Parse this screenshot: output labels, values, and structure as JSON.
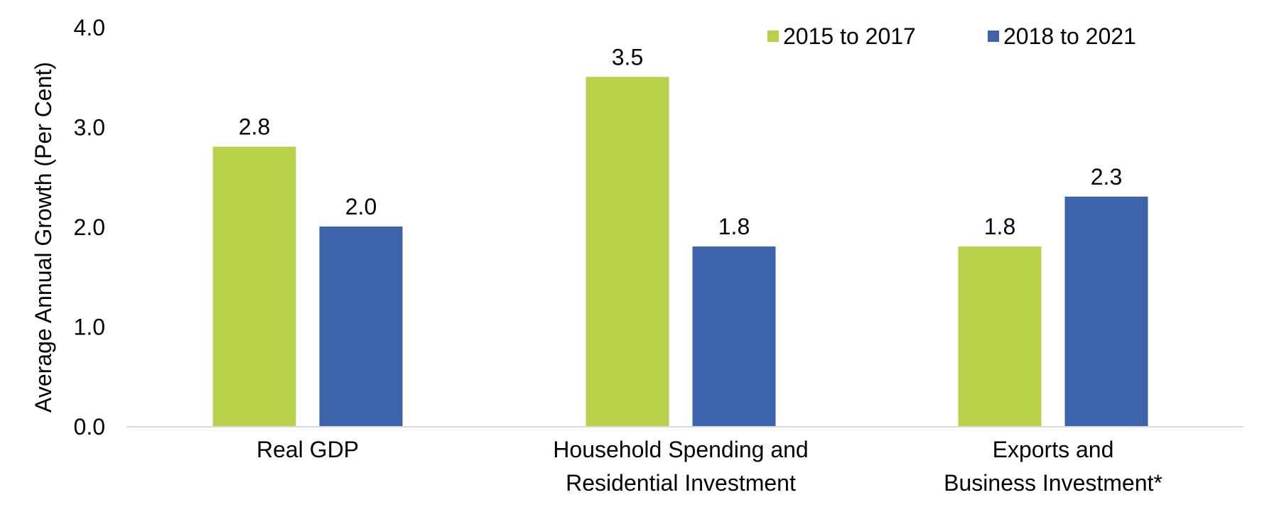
{
  "chart_data": {
    "type": "bar",
    "categories": [
      [
        "Real GDP"
      ],
      [
        "Household Spending and",
        "Residential Investment"
      ],
      [
        "Exports and",
        "Business Investment*"
      ]
    ],
    "series": [
      {
        "name": "2015 to 2017",
        "color": "#B8D14A",
        "values": [
          2.8,
          3.5,
          1.8
        ]
      },
      {
        "name": "2018 to 2021",
        "color": "#3D64AA",
        "values": [
          2.0,
          1.8,
          2.3
        ]
      }
    ],
    "data_labels": [
      [
        "2.8",
        "3.5",
        "1.8"
      ],
      [
        "2.0",
        "1.8",
        "2.3"
      ]
    ],
    "ylabel": "Average Annual Growth (Per Cent)",
    "xlabel": "",
    "title": "",
    "ylim": [
      0,
      4
    ],
    "yticks": [
      "0.0",
      "1.0",
      "2.0",
      "3.0",
      "4.0"
    ],
    "grid": false,
    "legend_position": "top-right"
  }
}
